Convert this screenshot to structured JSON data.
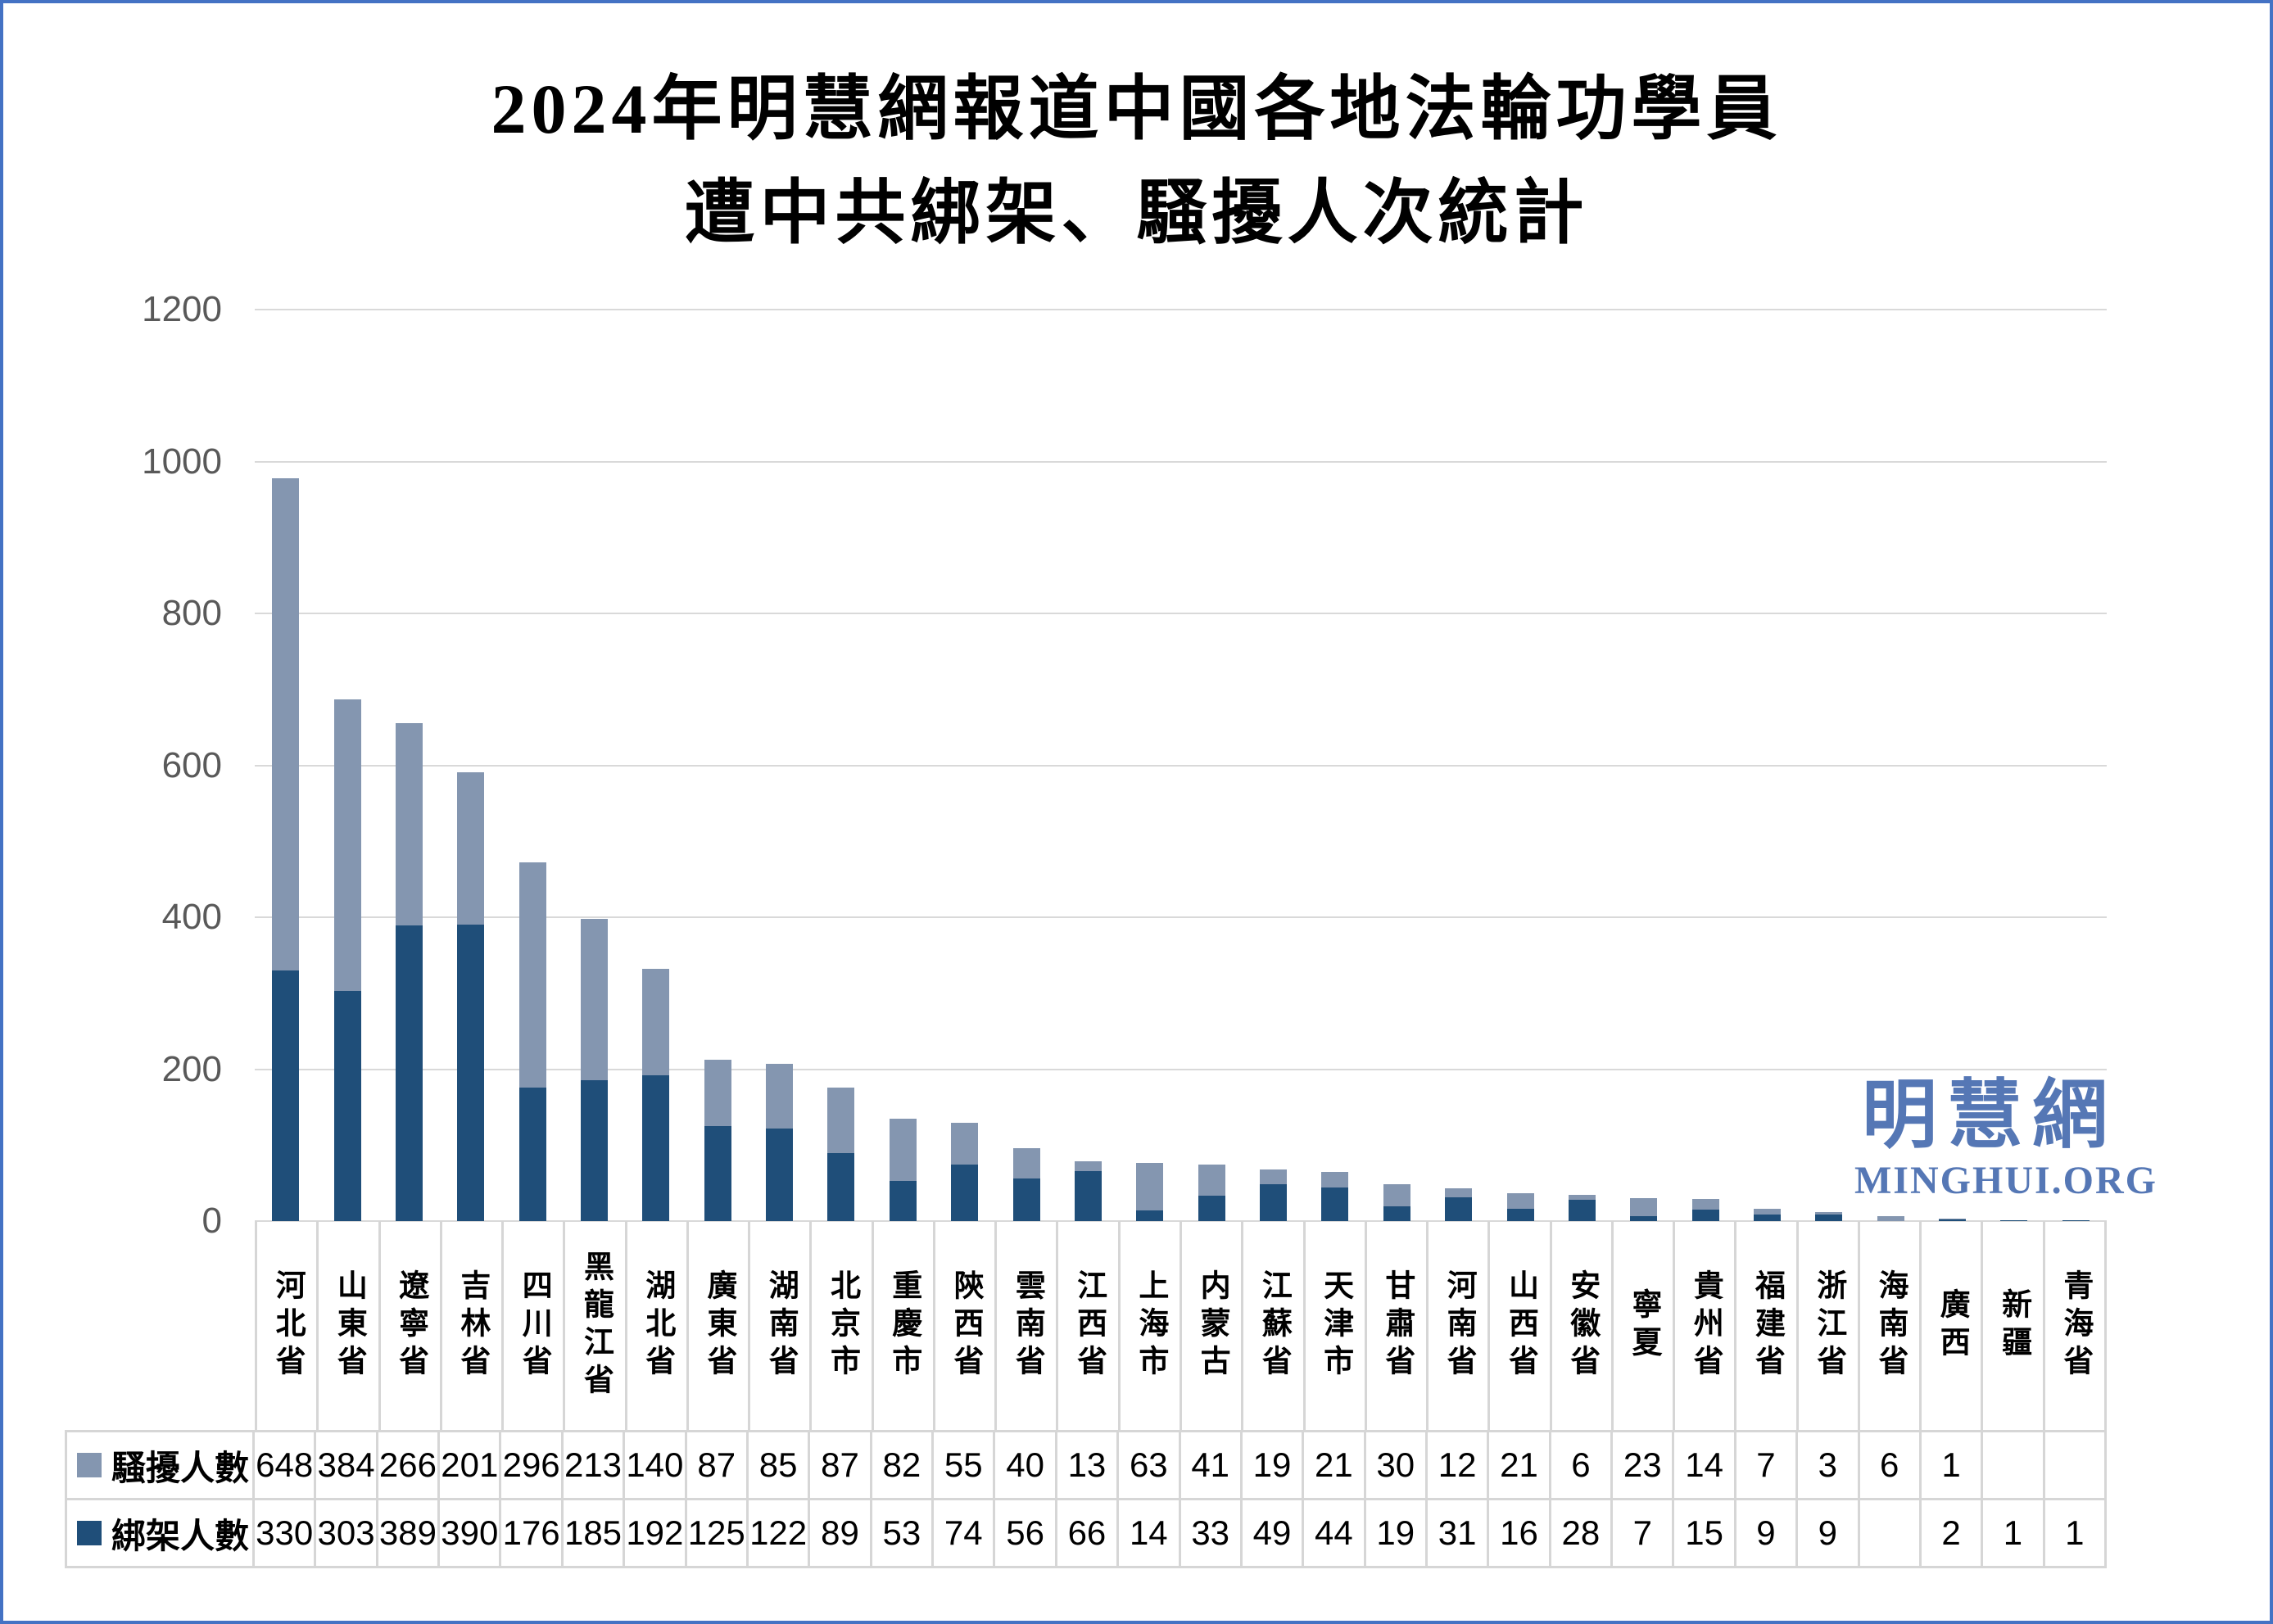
{
  "title": {
    "line1": "2024年明慧網報道中國各地法輪功學員",
    "line2": "遭中共綁架、騷擾人次統計"
  },
  "watermark": {
    "cn": "明慧網",
    "en": "MINGHUI.ORG"
  },
  "chart_data": {
    "type": "bar",
    "stacked": true,
    "title": "2024年明慧網報道中國各地法輪功學員遭中共綁架、騷擾人次統計",
    "categories": [
      "河北省",
      "山東省",
      "遼寧省",
      "吉林省",
      "四川省",
      "黑龍江省",
      "湖北省",
      "廣東省",
      "湖南省",
      "北京市",
      "重慶市",
      "陝西省",
      "雲南省",
      "江西省",
      "上海市",
      "内蒙古",
      "江蘇省",
      "天津市",
      "甘肅省",
      "河南省",
      "山西省",
      "安徽省",
      "寧夏",
      "貴州省",
      "福建省",
      "浙江省",
      "海南省",
      "廣西",
      "新疆",
      "青海省"
    ],
    "series": [
      {
        "name": "騷擾人數",
        "color": "#8496B0",
        "values": [
          648,
          384,
          266,
          201,
          296,
          213,
          140,
          87,
          85,
          87,
          82,
          55,
          40,
          13,
          63,
          41,
          19,
          21,
          30,
          12,
          21,
          6,
          23,
          14,
          7,
          3,
          6,
          1,
          null,
          null
        ]
      },
      {
        "name": "綁架人數",
        "color": "#1F4E79",
        "values": [
          330,
          303,
          389,
          390,
          176,
          185,
          192,
          125,
          122,
          89,
          53,
          74,
          56,
          66,
          14,
          33,
          49,
          44,
          19,
          31,
          16,
          28,
          7,
          15,
          9,
          9,
          null,
          2,
          1,
          1
        ]
      }
    ],
    "stack_order": [
      "綁架人數",
      "騷擾人數"
    ],
    "ylim": [
      0,
      1200
    ],
    "yticks": [
      0,
      200,
      400,
      600,
      800,
      1000,
      1200
    ],
    "grid": "horizontal",
    "legend_position": "table-left"
  },
  "colors": {
    "harassed": "#8496B0",
    "kidnapped": "#1F4E79",
    "gridline": "#D9D9D9",
    "tick_text": "#595959",
    "watermark_blue": "#5577B5",
    "canvas_border": "#4472C4",
    "table_border": "#D6D6D6"
  }
}
